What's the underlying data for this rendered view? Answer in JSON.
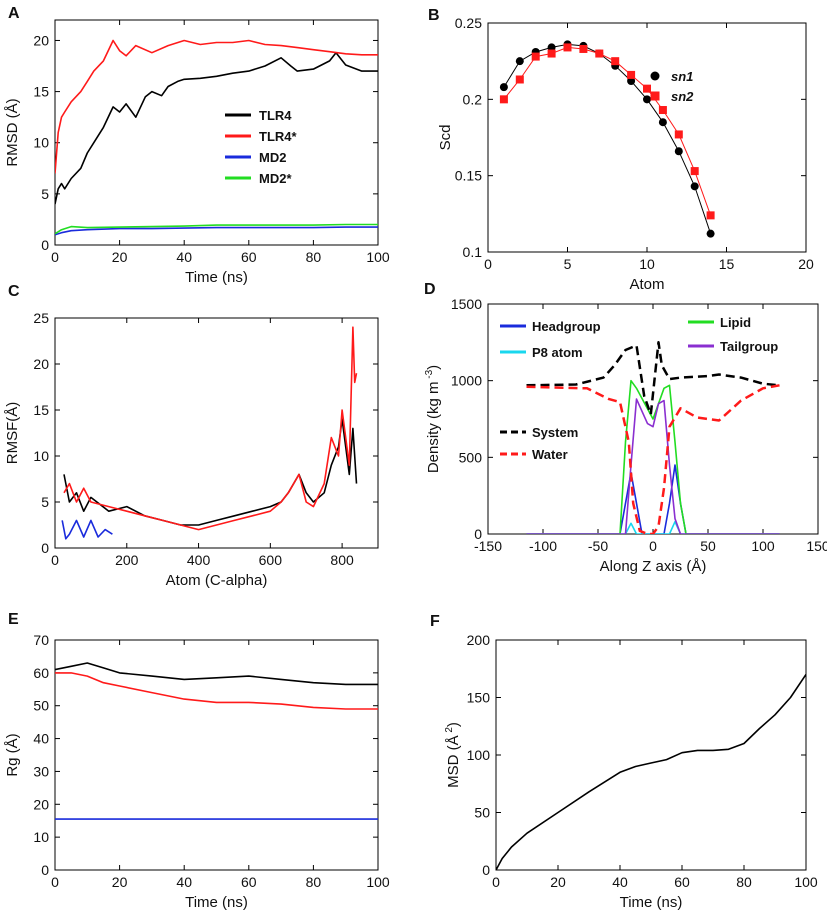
{
  "figure": {
    "panels": [
      "A",
      "B",
      "C",
      "D",
      "E",
      "F"
    ]
  },
  "chart_data": [
    {
      "id": "A",
      "type": "line",
      "xlabel": "Time (ns)",
      "ylabel": "RMSD (Å)",
      "xlim": [
        0,
        100
      ],
      "ylim": [
        0,
        22
      ],
      "xticks": [
        0,
        20,
        40,
        60,
        80,
        100
      ],
      "yticks": [
        0,
        5,
        10,
        15,
        20
      ],
      "legend_position": "center-right",
      "series": [
        {
          "name": "TLR4",
          "color": "#000000",
          "x": [
            0,
            1,
            2,
            3,
            5,
            8,
            10,
            12,
            15,
            18,
            20,
            22,
            25,
            28,
            30,
            33,
            35,
            38,
            40,
            45,
            50,
            55,
            60,
            65,
            70,
            73,
            75,
            80,
            85,
            87,
            90,
            95,
            100
          ],
          "y": [
            4,
            5.5,
            6,
            5.5,
            6.5,
            7.5,
            9,
            10,
            11.5,
            13.5,
            13,
            13.8,
            12.5,
            14.5,
            15,
            14.6,
            15.5,
            16,
            16.2,
            16.3,
            16.5,
            16.8,
            17,
            17.5,
            18.3,
            17.5,
            17,
            17.2,
            18,
            18.8,
            17.6,
            17,
            17
          ]
        },
        {
          "name": "TLR4*",
          "color": "#ff1a1a",
          "x": [
            0,
            1,
            2,
            3,
            5,
            8,
            10,
            12,
            15,
            18,
            20,
            22,
            25,
            30,
            35,
            40,
            45,
            50,
            55,
            60,
            65,
            70,
            75,
            80,
            85,
            90,
            95,
            100
          ],
          "y": [
            7,
            11,
            12.5,
            13,
            14,
            15,
            16,
            17,
            18,
            20,
            19,
            18.5,
            19.5,
            18.8,
            19.5,
            20,
            19.6,
            19.8,
            19.8,
            20,
            19.6,
            19.5,
            19.3,
            19.1,
            18.9,
            18.7,
            18.6,
            18.6
          ]
        },
        {
          "name": "MD2",
          "color": "#1a2bdc",
          "x": [
            0,
            2,
            5,
            10,
            20,
            30,
            40,
            50,
            60,
            70,
            80,
            90,
            100
          ],
          "y": [
            1,
            1.2,
            1.4,
            1.5,
            1.6,
            1.6,
            1.65,
            1.7,
            1.7,
            1.7,
            1.7,
            1.75,
            1.75
          ]
        },
        {
          "name": "MD2*",
          "color": "#22dd22",
          "x": [
            0,
            2,
            5,
            10,
            20,
            30,
            40,
            50,
            60,
            70,
            80,
            90,
            100
          ],
          "y": [
            1.1,
            1.5,
            1.8,
            1.7,
            1.75,
            1.8,
            1.85,
            1.95,
            1.95,
            1.95,
            1.95,
            2,
            2
          ]
        }
      ]
    },
    {
      "id": "B",
      "type": "scatter",
      "xlabel": "Atom",
      "ylabel": "Scd",
      "xlim": [
        0,
        20
      ],
      "ylim": [
        0.1,
        0.25
      ],
      "xticks": [
        0,
        5,
        10,
        15,
        20
      ],
      "yticks": [
        0.1,
        0.15,
        0.2,
        0.25
      ],
      "legend_position": "top-right",
      "series": [
        {
          "name": "sn1",
          "color": "#000000",
          "marker": "circle",
          "x": [
            1,
            2,
            3,
            4,
            5,
            6,
            7,
            8,
            9,
            10,
            11,
            12,
            13,
            14
          ],
          "y": [
            0.208,
            0.225,
            0.231,
            0.234,
            0.236,
            0.235,
            0.23,
            0.222,
            0.212,
            0.2,
            0.185,
            0.166,
            0.143,
            0.112
          ]
        },
        {
          "name": "sn2",
          "color": "#ff1a1a",
          "marker": "square",
          "x": [
            1,
            2,
            3,
            4,
            5,
            6,
            7,
            8,
            9,
            10,
            11,
            12,
            13,
            14
          ],
          "y": [
            0.2,
            0.213,
            0.228,
            0.23,
            0.234,
            0.233,
            0.23,
            0.225,
            0.216,
            0.207,
            0.193,
            0.177,
            0.153,
            0.124
          ]
        }
      ]
    },
    {
      "id": "C",
      "type": "line",
      "xlabel": "Atom (C-alpha)",
      "ylabel": "RMSF(Å)",
      "xlim": [
        0,
        900
      ],
      "ylim": [
        0,
        25
      ],
      "xticks": [
        0,
        200,
        400,
        600,
        800
      ],
      "yticks": [
        0,
        5,
        10,
        15,
        20,
        25
      ],
      "series": [
        {
          "name": "TLR4",
          "color": "#000000",
          "x": [
            25,
            40,
            60,
            80,
            100,
            150,
            200,
            250,
            300,
            350,
            400,
            450,
            500,
            550,
            600,
            630,
            650,
            680,
            700,
            720,
            750,
            770,
            790,
            800,
            820,
            830,
            840
          ],
          "y": [
            8,
            5,
            6,
            4,
            5.5,
            4,
            4.5,
            3.5,
            3,
            2.5,
            2.5,
            3,
            3.5,
            4,
            4.5,
            5,
            6,
            8,
            6,
            5,
            6,
            9,
            11,
            14,
            8,
            13,
            7
          ]
        },
        {
          "name": "TLR4*",
          "color": "#ff1a1a",
          "x": [
            25,
            40,
            60,
            80,
            100,
            150,
            200,
            250,
            300,
            350,
            400,
            450,
            500,
            550,
            600,
            630,
            650,
            680,
            700,
            720,
            750,
            770,
            790,
            800,
            820,
            830,
            835,
            840
          ],
          "y": [
            6,
            7,
            5,
            6.5,
            5,
            4.5,
            4,
            3.5,
            3,
            2.5,
            2,
            2.5,
            3,
            3.5,
            4,
            5,
            6,
            8,
            5,
            4.5,
            7,
            12,
            10,
            15,
            9,
            24,
            18,
            19
          ]
        },
        {
          "name": "MD2",
          "color": "#1a2bdc",
          "x": [
            20,
            30,
            40,
            60,
            80,
            100,
            120,
            140,
            160
          ],
          "y": [
            3,
            1,
            1.5,
            3,
            1.2,
            3,
            1.2,
            2,
            1.5
          ]
        }
      ]
    },
    {
      "id": "D",
      "type": "line",
      "xlabel": "Along Z axis (Å)",
      "ylabel": "Density (kg m",
      "ylabel_exp": "-3",
      "ylabel_close": ")",
      "xlim": [
        -150,
        150
      ],
      "ylim": [
        0,
        1500
      ],
      "xticks": [
        -150,
        -100,
        -50,
        0,
        50,
        100,
        150
      ],
      "yticks": [
        0,
        500,
        1000,
        1500
      ],
      "legend_position": "top",
      "series": [
        {
          "name": "Headgroup",
          "color": "#1a2bdc",
          "x": [
            -115,
            -30,
            -25,
            -20,
            -15,
            -10,
            10,
            15,
            20,
            25,
            30,
            115
          ],
          "y": [
            0,
            0,
            200,
            400,
            200,
            0,
            0,
            200,
            450,
            200,
            0,
            0
          ]
        },
        {
          "name": "P8 atom",
          "color": "#19d7ee",
          "x": [
            -115,
            -25,
            -20,
            -15,
            15,
            20,
            25,
            115
          ],
          "y": [
            0,
            0,
            70,
            0,
            0,
            80,
            0,
            0
          ]
        },
        {
          "name": "Lipid",
          "color": "#22dd22",
          "x": [
            -115,
            -30,
            -25,
            -20,
            -15,
            0,
            10,
            15,
            20,
            25,
            30,
            115
          ],
          "y": [
            0,
            0,
            600,
            1000,
            950,
            750,
            950,
            970,
            600,
            200,
            0,
            0
          ]
        },
        {
          "name": "Tailgroup",
          "color": "#8a2fd0",
          "x": [
            -115,
            -25,
            -20,
            -15,
            -5,
            0,
            5,
            10,
            15,
            20,
            25,
            115
          ],
          "y": [
            0,
            0,
            450,
            880,
            720,
            700,
            850,
            870,
            450,
            100,
            0,
            0
          ]
        },
        {
          "name": "System",
          "color": "#000000",
          "dashed": true,
          "x": [
            -115,
            -70,
            -45,
            -35,
            -25,
            -15,
            -8,
            -2,
            5,
            8,
            15,
            25,
            50,
            60,
            80,
            100,
            115
          ],
          "y": [
            970,
            975,
            1020,
            1100,
            1200,
            1230,
            900,
            780,
            1250,
            1100,
            1010,
            1020,
            1030,
            1040,
            1020,
            980,
            970
          ]
        },
        {
          "name": "Water",
          "color": "#ff1a1a",
          "dashed": true,
          "x": [
            -115,
            -60,
            -40,
            -30,
            -22,
            -18,
            -12,
            -5,
            0,
            5,
            10,
            15,
            25,
            40,
            60,
            80,
            100,
            115
          ],
          "y": [
            960,
            950,
            880,
            860,
            600,
            200,
            20,
            0,
            0,
            50,
            300,
            700,
            820,
            760,
            740,
            870,
            950,
            970
          ]
        }
      ]
    },
    {
      "id": "E",
      "type": "line",
      "xlabel": "Time (ns)",
      "ylabel": "Rg (Å)",
      "xlim": [
        0,
        100
      ],
      "ylim": [
        0,
        70
      ],
      "xticks": [
        0,
        20,
        40,
        60,
        80,
        100
      ],
      "yticks": [
        0,
        10,
        20,
        30,
        40,
        50,
        60,
        70
      ],
      "series": [
        {
          "name": "TLR4",
          "color": "#000000",
          "x": [
            0,
            5,
            10,
            15,
            20,
            30,
            40,
            50,
            60,
            70,
            80,
            90,
            100
          ],
          "y": [
            61,
            62,
            63,
            61.5,
            60,
            59,
            58,
            58.5,
            59,
            58,
            57,
            56.5,
            56.5
          ]
        },
        {
          "name": "TLR4*",
          "color": "#ff1a1a",
          "x": [
            0,
            5,
            10,
            15,
            20,
            30,
            40,
            50,
            60,
            70,
            80,
            90,
            100
          ],
          "y": [
            60,
            60,
            59,
            57,
            56,
            54,
            52,
            51,
            51,
            50.5,
            49.5,
            49,
            49
          ]
        },
        {
          "name": "MD2",
          "color": "#1a2bdc",
          "x": [
            0,
            20,
            40,
            60,
            80,
            100
          ],
          "y": [
            15.5,
            15.5,
            15.5,
            15.5,
            15.5,
            15.5
          ]
        }
      ]
    },
    {
      "id": "F",
      "type": "line",
      "xlabel": "Time (ns)",
      "ylabel": "MSD (Å",
      "ylabel_exp": "2",
      "ylabel_close": ")",
      "xlim": [
        0,
        100
      ],
      "ylim": [
        0,
        200
      ],
      "xticks": [
        0,
        20,
        40,
        60,
        80,
        100
      ],
      "yticks": [
        0,
        50,
        100,
        150,
        200
      ],
      "series": [
        {
          "name": "MSD",
          "color": "#000000",
          "x": [
            0,
            2,
            5,
            10,
            20,
            30,
            40,
            45,
            50,
            55,
            60,
            65,
            70,
            75,
            80,
            85,
            90,
            95,
            100
          ],
          "y": [
            0,
            10,
            20,
            32,
            50,
            68,
            85,
            90,
            93,
            96,
            102,
            104,
            104,
            105,
            110,
            123,
            135,
            150,
            170
          ]
        }
      ]
    }
  ]
}
